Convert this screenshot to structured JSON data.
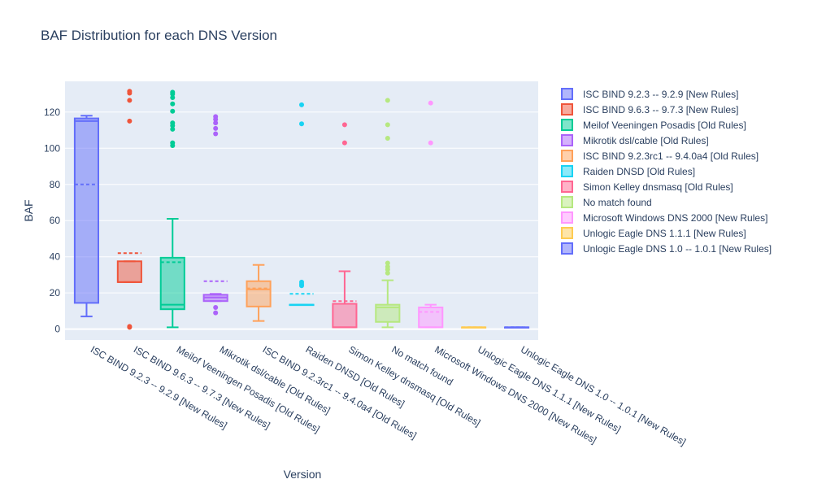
{
  "chart_data": {
    "type": "box",
    "title": "BAF Distribution for each DNS Version",
    "xlabel": "Version",
    "ylabel": "BAF",
    "ylim": [
      -6,
      137
    ],
    "yticks": [
      0,
      20,
      40,
      60,
      80,
      100,
      120
    ],
    "grid": true,
    "legend_position": "right",
    "categories": [
      "ISC BIND 9.2.3 -- 9.2.9 [New Rules]",
      "ISC BIND 9.6.3 -- 9.7.3 [New Rules]",
      "Meilof Veeningen Posadis  [Old Rules]",
      "Mikrotik dsl/cable  [Old Rules]",
      "ISC BIND 9.2.3rc1 -- 9.4.0a4 [Old Rules]",
      "Raiden DNSD  [Old Rules]",
      "Simon Kelley dnsmasq  [Old Rules]",
      "No match found",
      "Microsoft Windows DNS 2000 [New Rules]",
      "Unlogic Eagle DNS 1.1.1 [New Rules]",
      "Unlogic Eagle DNS 1.0 -- 1.0.1 [New Rules]"
    ],
    "series": [
      {
        "name": "ISC BIND 9.2.3 -- 9.2.9 [New Rules]",
        "color": "#636efa",
        "min": 7,
        "q1": 14.5,
        "median": 115,
        "q3": 116.5,
        "max": 118,
        "mean": 80,
        "outliers": []
      },
      {
        "name": "ISC BIND 9.6.3 -- 9.7.3 [New Rules]",
        "color": "#ef553b",
        "min": 26,
        "q1": 26,
        "median": 26,
        "q3": 37.5,
        "max": 37.5,
        "mean": 42,
        "outliers": [
          1,
          1.5,
          115,
          126.5,
          130.5,
          131.5
        ]
      },
      {
        "name": "Meilof Veeningen Posadis  [Old Rules]",
        "color": "#00cc96",
        "min": 1,
        "q1": 11,
        "median": 13.5,
        "q3": 39.5,
        "max": 61,
        "mean": 37,
        "outliers": [
          101.5,
          103,
          110.5,
          112.5,
          114,
          120.5,
          124.5,
          128,
          130,
          131
        ]
      },
      {
        "name": "Mikrotik dsl/cable  [Old Rules]",
        "color": "#ab63fa",
        "min": 15.5,
        "q1": 15.5,
        "median": 17.5,
        "q3": 19,
        "max": 19.5,
        "mean": 26.5,
        "outliers": [
          9,
          12,
          108,
          111,
          114,
          116,
          117.5
        ]
      },
      {
        "name": "ISC BIND 9.2.3rc1 -- 9.4.0a4 [Old Rules]",
        "color": "#ffa15a",
        "min": 4.5,
        "q1": 12.5,
        "median": 22,
        "q3": 26.5,
        "max": 35.5,
        "mean": 22.5,
        "outliers": []
      },
      {
        "name": "Raiden DNSD  [Old Rules]",
        "color": "#19d3f3",
        "min": 13.5,
        "q1": 13.5,
        "median": 13.5,
        "q3": 13.5,
        "max": 13.5,
        "mean": 19.5,
        "outliers": [
          24,
          25,
          26,
          113.5,
          124
        ]
      },
      {
        "name": "Simon Kelley dnsmasq  [Old Rules]",
        "color": "#ff6692",
        "min": 1,
        "q1": 1,
        "median": 1,
        "q3": 14,
        "max": 32,
        "mean": 15.5,
        "outliers": [
          103,
          113
        ]
      },
      {
        "name": "No match found",
        "color": "#b6e880",
        "min": 1,
        "q1": 4,
        "median": 12,
        "q3": 13.5,
        "max": 27,
        "mean": 12,
        "outliers": [
          31,
          33,
          34.5,
          36.5,
          105.5,
          113,
          126.5
        ]
      },
      {
        "name": "Microsoft Windows DNS 2000 [New Rules]",
        "color": "#ff97ff",
        "min": 1,
        "q1": 1,
        "median": 1,
        "q3": 12,
        "max": 13.5,
        "mean": 9.5,
        "outliers": [
          103,
          125
        ]
      },
      {
        "name": "Unlogic Eagle DNS 1.1.1 [New Rules]",
        "color": "#fecb52",
        "min": 1,
        "q1": 1,
        "median": 1,
        "q3": 1,
        "max": 1,
        "mean": 1,
        "outliers": []
      },
      {
        "name": "Unlogic Eagle DNS 1.0 -- 1.0.1 [New Rules]",
        "color": "#636efa",
        "min": 1,
        "q1": 1,
        "median": 1,
        "q3": 1,
        "max": 1,
        "mean": 1,
        "outliers": []
      }
    ]
  }
}
